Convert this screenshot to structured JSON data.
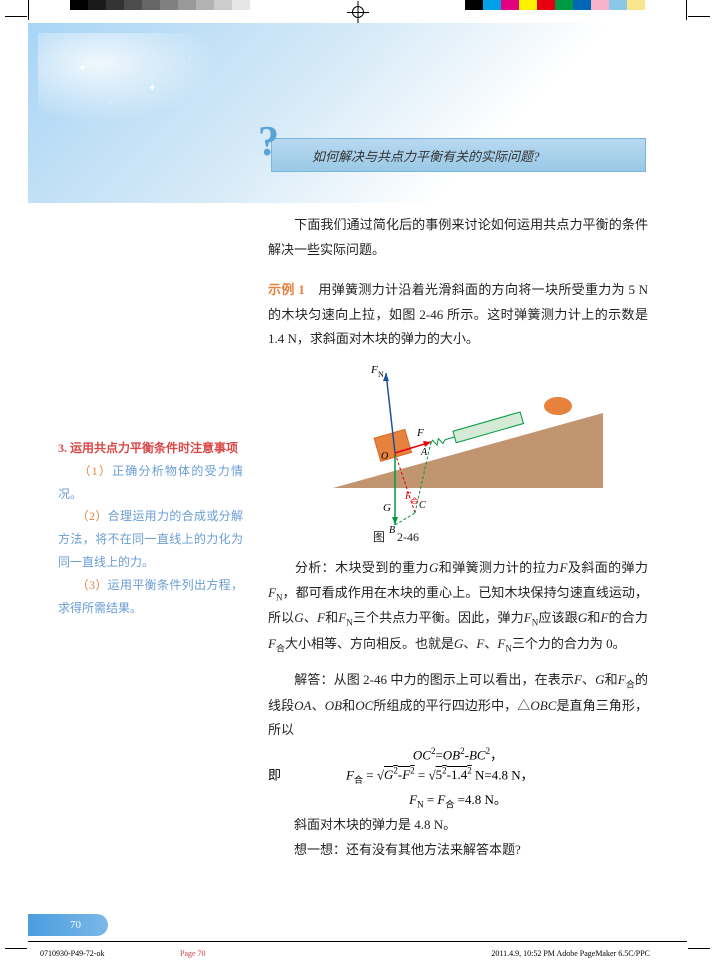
{
  "crop_colors_left": [
    "#000000",
    "#1a1a1a",
    "#333333",
    "#4d4d4d",
    "#666666",
    "#808080",
    "#999999",
    "#b3b3b3",
    "#cccccc",
    "#e6e6e6",
    "#ffffff"
  ],
  "crop_colors_right": [
    "#000000",
    "#00a0e9",
    "#e4007f",
    "#fff100",
    "#e60012",
    "#009944",
    "#0068b7",
    "#f5b2c8",
    "#8ac8e8",
    "#f8e58c"
  ],
  "question_text": "如何解决与共点力平衡有关的实际问题?",
  "intro_text": "　　下面我们通过简化后的事例来讨论如何运用共点力平衡的条件解决一些实际问题。",
  "example_label": "示例 1",
  "example_text": "　用弹簧测力计沿着光滑斜面的方向将一块所受重力为 5 N 的木块匀速向上拉，如图 2-46 所示。这时弹簧测力计上的示数是 1.4 N，求斜面对木块的弹力的大小。",
  "figure_caption": "图　2-46",
  "analysis_label": "分析：",
  "analysis_text": "木块受到的重力G和弹簧测力计的拉力F及斜面的弹力F_N，都可看成作用在木块的重心上。已知木块保持匀速直线运动，所以G、F和F_N三个共点力平衡。因此，弹力F_N应该跟G和F的合力F_合大小相等、方向相反。也就是G、F、F_N三个力的合力为 0。",
  "answer_label": "解答：",
  "answer_text": "从图 2-46 中力的图示上可以看出，在表示F、G和F_合的线段OA、OB和OC所组成的平行四边形中，△OBC是直角三角形，所以",
  "eq1": "OC²=OB²-BC²，",
  "eq2_label": "即",
  "eq2_text": "F_合 = √(G²-F²) = √(5²-1.4²) N=4.8 N，",
  "eq3": "F_N = F_合 =4.8 N。",
  "conclusion": "　　斜面对木块的弹力是 4.8 N。",
  "think": "　　想一想：还有没有其他方法来解答本题?",
  "sidebar_title": "3. 运用共点力平衡条件时注意事项",
  "sidebar_item1_num": "（1）",
  "sidebar_item1": "正确分析物体的受力情况。",
  "sidebar_item2_num": "（2）",
  "sidebar_item2": "合理运用力的合成或分解方法，将不在同一直线上的力化为同一直线上的力。",
  "sidebar_item3_num": "（3）",
  "sidebar_item3": "运用平衡条件列出方程，求得所需结果。",
  "page_number": "70",
  "footer_file": "0710930-P49-72-ok",
  "footer_page": "Page 70",
  "footer_meta": "2011.4.9, 10:52 PM  Adobe PageMaker  6.5C/PPC",
  "diagram": {
    "bg_color": "#c29571",
    "slope_start": [
      0,
      135
    ],
    "slope_end": [
      270,
      60
    ],
    "fn_color": "#1e50a2",
    "g_color": "#009944",
    "f_color": "#e60012",
    "box_color": "#e6813e",
    "spring_color": "#009944"
  }
}
